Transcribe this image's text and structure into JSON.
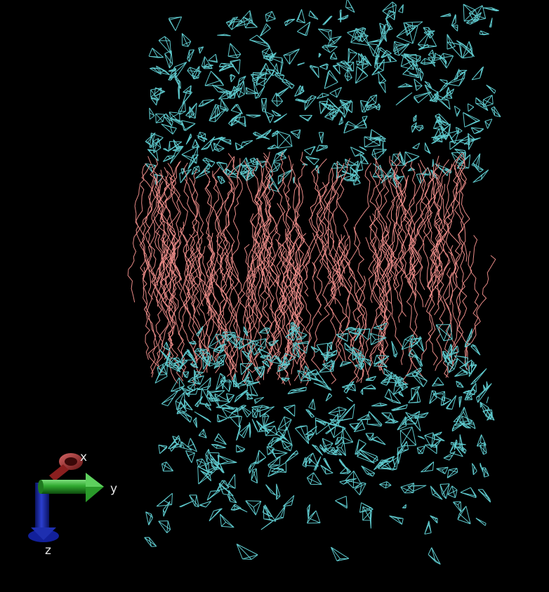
{
  "scene": {
    "background_color": "#000000",
    "lipid_tail_color": "#e88a86",
    "water_color": "#5ec8cc"
  },
  "axes": {
    "x": {
      "label": "x",
      "color": "#b83a3a"
    },
    "y": {
      "label": "y",
      "color": "#2ea82e"
    },
    "z": {
      "label": "z",
      "color": "#1e2fb0"
    }
  }
}
